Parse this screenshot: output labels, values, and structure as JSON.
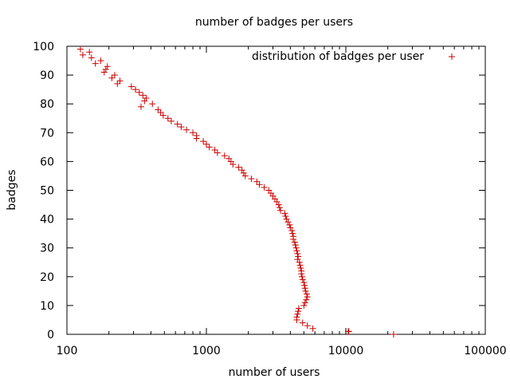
{
  "chart_data": {
    "type": "scatter",
    "title": "number of badges per users",
    "xlabel": "number of users",
    "ylabel": "badges",
    "xscale": "log",
    "xlim": [
      100,
      100000
    ],
    "ylim": [
      0,
      100
    ],
    "xticks": [
      "100",
      "1000",
      "10000",
      "100000"
    ],
    "yticks": [
      "0",
      "10",
      "20",
      "30",
      "40",
      "50",
      "60",
      "70",
      "80",
      "90",
      "100"
    ],
    "grid": false,
    "legend": {
      "position": "top-right",
      "entries": [
        "distribution of badges per user"
      ]
    },
    "series": [
      {
        "name": "distribution of badges per user",
        "color": "#cc0000",
        "marker": "+",
        "points": [
          [
            22000,
            0
          ],
          [
            10500,
            1
          ],
          [
            10400,
            1
          ],
          [
            5800,
            2
          ],
          [
            5300,
            3
          ],
          [
            4900,
            4
          ],
          [
            4450,
            5
          ],
          [
            4450,
            6
          ],
          [
            4500,
            7
          ],
          [
            4550,
            8
          ],
          [
            4600,
            9
          ],
          [
            5000,
            10
          ],
          [
            5100,
            11
          ],
          [
            5200,
            12
          ],
          [
            5300,
            13
          ],
          [
            5250,
            14
          ],
          [
            5150,
            15
          ],
          [
            5100,
            16
          ],
          [
            5050,
            17
          ],
          [
            5000,
            18
          ],
          [
            4900,
            19
          ],
          [
            4850,
            20
          ],
          [
            4800,
            21
          ],
          [
            4800,
            22
          ],
          [
            4750,
            23
          ],
          [
            4700,
            24
          ],
          [
            4650,
            25
          ],
          [
            4500,
            26
          ],
          [
            4550,
            27
          ],
          [
            4500,
            28
          ],
          [
            4450,
            29
          ],
          [
            4400,
            30
          ],
          [
            4350,
            31
          ],
          [
            4300,
            32
          ],
          [
            4200,
            33
          ],
          [
            4200,
            34
          ],
          [
            4150,
            35
          ],
          [
            4100,
            36
          ],
          [
            4000,
            37
          ],
          [
            3950,
            38
          ],
          [
            3850,
            39
          ],
          [
            3750,
            40
          ],
          [
            3700,
            41
          ],
          [
            3650,
            42
          ],
          [
            3400,
            43
          ],
          [
            3350,
            44
          ],
          [
            3300,
            45
          ],
          [
            3200,
            46
          ],
          [
            3100,
            47
          ],
          [
            3000,
            48
          ],
          [
            2900,
            49
          ],
          [
            2800,
            50
          ],
          [
            2600,
            51
          ],
          [
            2400,
            52
          ],
          [
            2300,
            53
          ],
          [
            2100,
            54
          ],
          [
            1900,
            55
          ],
          [
            1850,
            56
          ],
          [
            1800,
            57
          ],
          [
            1700,
            58
          ],
          [
            1550,
            59
          ],
          [
            1500,
            60
          ],
          [
            1450,
            61
          ],
          [
            1350,
            62
          ],
          [
            1200,
            63
          ],
          [
            1150,
            64
          ],
          [
            1050,
            65
          ],
          [
            1000,
            66
          ],
          [
            950,
            67
          ],
          [
            850,
            68
          ],
          [
            850,
            69
          ],
          [
            800,
            70
          ],
          [
            720,
            71
          ],
          [
            660,
            72
          ],
          [
            620,
            73
          ],
          [
            560,
            74
          ],
          [
            530,
            75
          ],
          [
            490,
            76
          ],
          [
            470,
            77
          ],
          [
            450,
            78
          ],
          [
            340,
            79
          ],
          [
            410,
            80
          ],
          [
            360,
            81
          ],
          [
            370,
            82
          ],
          [
            350,
            83
          ],
          [
            330,
            84
          ],
          [
            310,
            85
          ],
          [
            290,
            86
          ],
          [
            230,
            87
          ],
          [
            240,
            88
          ],
          [
            210,
            89
          ],
          [
            220,
            90
          ],
          [
            185,
            91
          ],
          [
            190,
            92
          ],
          [
            195,
            93
          ],
          [
            160,
            94
          ],
          [
            175,
            95
          ],
          [
            150,
            96
          ],
          [
            130,
            97
          ],
          [
            145,
            98
          ],
          [
            125,
            99
          ]
        ]
      }
    ]
  }
}
